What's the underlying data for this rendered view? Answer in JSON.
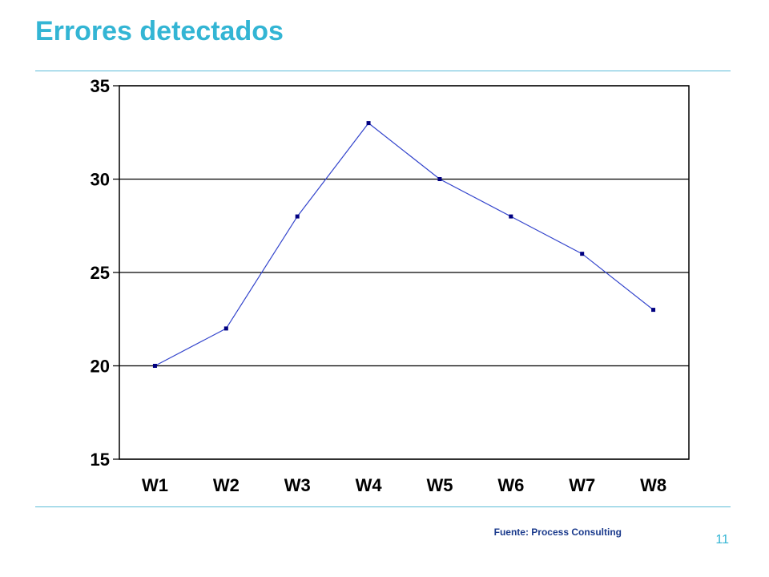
{
  "slide": {
    "title": "Errores detectados",
    "source": "Fuente: Process Consulting",
    "page_number": "11"
  },
  "chart_data": {
    "type": "line",
    "categories": [
      "W1",
      "W2",
      "W3",
      "W4",
      "W5",
      "W6",
      "W7",
      "W8"
    ],
    "series": [
      {
        "values": [
          20,
          22,
          28,
          33,
          30,
          28,
          26,
          23
        ]
      }
    ],
    "ylim": [
      15,
      35
    ],
    "yticks": [
      15,
      20,
      25,
      30,
      35
    ],
    "grid": true,
    "colors": {
      "line": "#3344cc",
      "marker": "#000080",
      "title": "#33b5d4"
    }
  }
}
